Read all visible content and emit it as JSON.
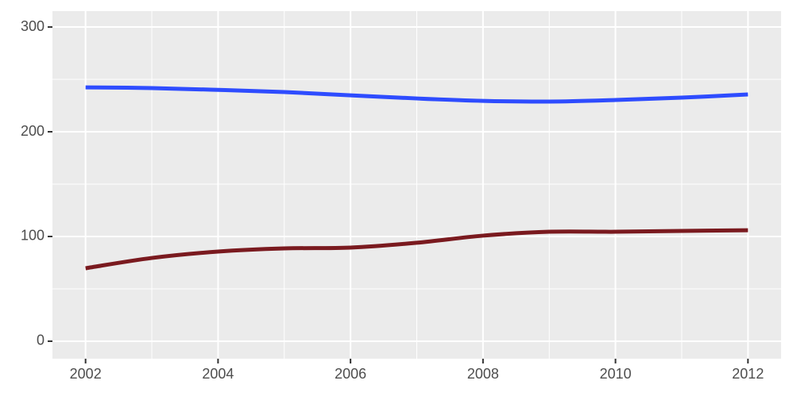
{
  "chart_data": {
    "type": "line",
    "x": [
      2002,
      2003,
      2004,
      2005,
      2006,
      2007,
      2008,
      2009,
      2010,
      2011,
      2012
    ],
    "series": [
      {
        "color": "#2e4cff",
        "values": [
          242.4,
          241.7,
          240,
          237.9,
          234.8,
          231.8,
          229.5,
          228.8,
          230.3,
          232.6,
          235.6
        ]
      },
      {
        "color": "#7a1a1f",
        "values": [
          69.7,
          79.5,
          85.6,
          88.6,
          89.4,
          94,
          100.8,
          104.5,
          104.5,
          105.3,
          106
        ]
      }
    ],
    "xlim": [
      2001.5,
      2012.5
    ],
    "xticks": [
      2002,
      2004,
      2006,
      2008,
      2010,
      2012
    ],
    "ylim": [
      -16.7,
      315.2
    ],
    "yticks": [
      0,
      100,
      200,
      300
    ],
    "grid": true,
    "panel_color": "#ebebeb"
  }
}
